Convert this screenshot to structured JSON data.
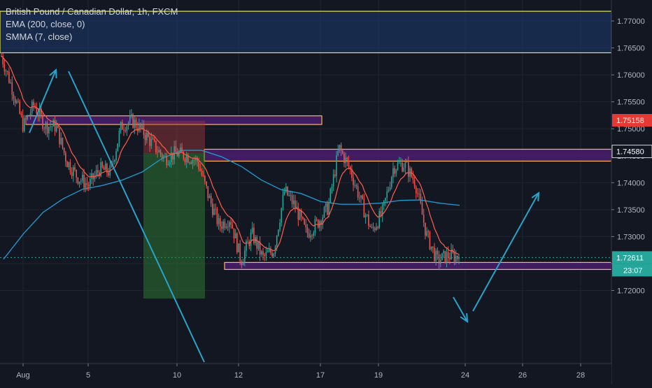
{
  "chart_data": {
    "type": "candlestick",
    "title": "British Pound / Canadian Dollar, 1h, FXCM",
    "indicators": [
      "EMA (200, close, 0)",
      "SMMA (7, close)"
    ],
    "y_range": [
      1.7185,
      1.7795
    ],
    "y_ticks": [
      "1.77000",
      "1.76500",
      "1.76000",
      "1.75500",
      "1.75000",
      "1.74500",
      "1.74000",
      "1.73500",
      "1.73000",
      "1.72500",
      "1.72000"
    ],
    "x_ticks": [
      "Aug",
      "5",
      "10",
      "12",
      "17",
      "19",
      "24",
      "26",
      "28"
    ],
    "price_labels": [
      {
        "value": 1.75158,
        "text": "1.75158",
        "color": "#e53935"
      },
      {
        "value": 1.7458,
        "text": "1.74580",
        "color": "#131722"
      },
      {
        "value": 1.72611,
        "text": "1.72611",
        "color": "#26a69a"
      }
    ],
    "countdown": "23:07",
    "close_price": 1.72611,
    "ohlc_path": [
      1.7635,
      1.7575,
      1.7505,
      1.7545,
      1.7505,
      1.7505,
      1.744,
      1.741,
      1.7395,
      1.7425,
      1.742,
      1.7505,
      1.7515,
      1.7495,
      1.7468,
      1.7445,
      1.7455,
      1.745,
      1.744,
      1.7375,
      1.732,
      1.7335,
      1.7255,
      1.7305,
      1.726,
      1.7275,
      1.7385,
      1.7355,
      1.7305,
      1.7325,
      1.7355,
      1.7465,
      1.7425,
      1.7365,
      1.731,
      1.7345,
      1.743,
      1.7435,
      1.74,
      1.7305,
      1.7255,
      1.7265,
      1.7262
    ],
    "ema200": [
      1.7258,
      1.7305,
      1.7345,
      1.737,
      1.7388,
      1.7395,
      1.7405,
      1.742,
      1.7445,
      1.746,
      1.746,
      1.7448,
      1.743,
      1.7405,
      1.7387,
      1.738,
      1.7365,
      1.736,
      1.736,
      1.7362,
      1.7367,
      1.7368,
      1.7362,
      1.7358
    ],
    "zones": [
      {
        "label": "upper supply",
        "low": 1.7641,
        "high": 1.7718,
        "fill": "#1e3a6e",
        "border": "#e8e84a"
      },
      {
        "label": "resistance zone 1",
        "low": 1.7508,
        "high": 1.7524,
        "fill": "#4a1d6e",
        "border": "#ffb74d"
      },
      {
        "label": "resistance zone 2",
        "low": 1.744,
        "high": 1.7462,
        "fill": "#4a1d6e",
        "border": "#ffb74d"
      },
      {
        "label": "support zone",
        "low": 1.7239,
        "high": 1.7252,
        "fill": "#4a1d6e",
        "border": "#ffb74d"
      }
    ],
    "position": {
      "entry": 1.7455,
      "stop": 1.7515,
      "target": 1.7185,
      "stop_color": "#a03a3a",
      "target_color": "#2e7d32"
    },
    "arrows": [
      "up to upper zone",
      "down to target",
      "down into support",
      "up from support"
    ],
    "grid": true,
    "volume": false
  }
}
